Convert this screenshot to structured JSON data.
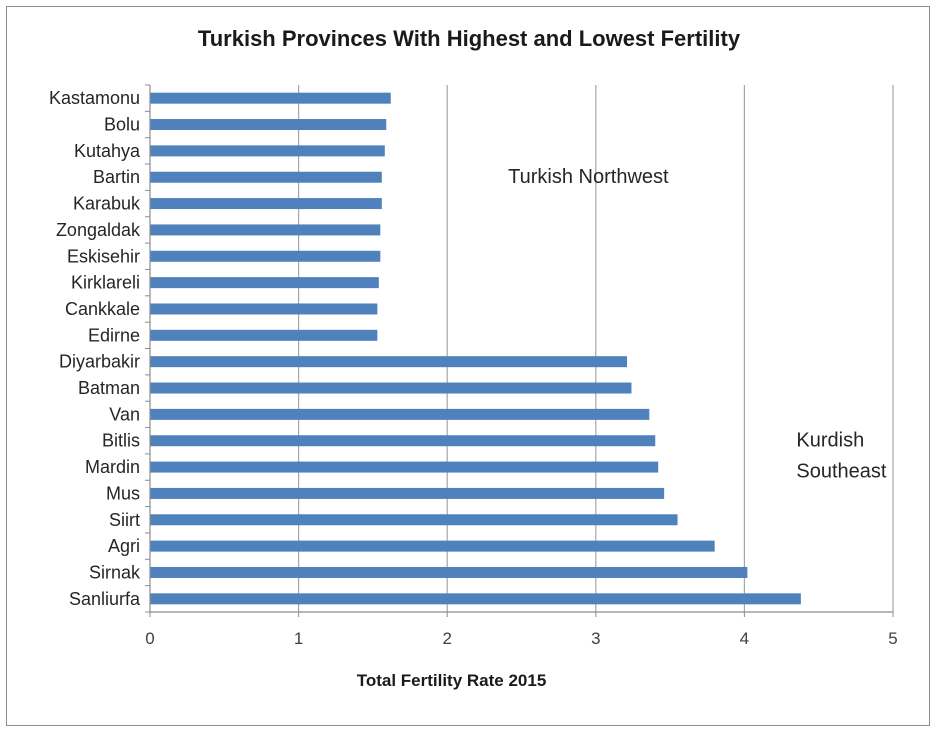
{
  "chart_data": {
    "type": "bar",
    "orientation": "horizontal",
    "title": "Turkish Provinces With Highest and Lowest Fertility",
    "xlabel": "Total Fertility Rate 2015",
    "ylabel": "",
    "xlim": [
      0,
      5
    ],
    "xticks": [
      "0",
      "1",
      "2",
      "3",
      "4",
      "5"
    ],
    "grid": "vertical",
    "bar_color": "#4f81bd",
    "categories": [
      "Kastamonu",
      "Bolu",
      "Kutahya",
      "Bartin",
      "Karabuk",
      "Zongaldak",
      "Eskisehir",
      "Kirklareli",
      "Cankkale",
      "Edirne",
      "Diyarbakir",
      "Batman",
      "Van",
      "Bitlis",
      "Mardin",
      "Mus",
      "Siirt",
      "Agri",
      "Sirnak",
      "Sanliurfa"
    ],
    "values": [
      1.62,
      1.59,
      1.58,
      1.56,
      1.56,
      1.55,
      1.55,
      1.54,
      1.53,
      1.53,
      3.21,
      3.24,
      3.36,
      3.4,
      3.42,
      3.46,
      3.55,
      3.8,
      4.02,
      4.38
    ],
    "annotations": [
      {
        "text": "Turkish Northwest",
        "x": 2.95,
        "y_category": "Bartin"
      },
      {
        "text": "Kurdish Southeast",
        "lines": [
          "Kurdish",
          "Southeast"
        ],
        "x": 4.35,
        "y_category": "Bitlis"
      }
    ]
  }
}
